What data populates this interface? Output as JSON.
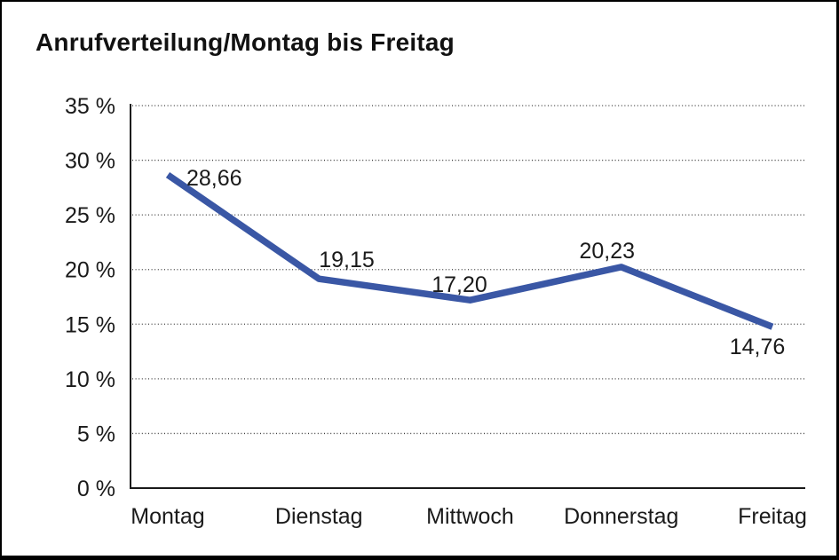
{
  "chart": {
    "title": "Anrufverteilung/Montag bis Freitag"
  },
  "chart_data": {
    "type": "line",
    "title": "Anrufverteilung/Montag bis Freitag",
    "categories": [
      "Montag",
      "Dienstag",
      "Mittwoch",
      "Donnerstag",
      "Freitag"
    ],
    "values": [
      28.66,
      19.15,
      17.2,
      20.23,
      14.76
    ],
    "value_labels": [
      "28,66",
      "19,15",
      "17,20",
      "20,23",
      "14,76"
    ],
    "unit": "%",
    "xlabel": "",
    "ylabel": "",
    "ylim": [
      0,
      35
    ],
    "ytick_step": 5,
    "ytick_labels": [
      "0 %",
      "5 %",
      "10 %",
      "15 %",
      "20 %",
      "25 %",
      "30 %",
      "35 %"
    ],
    "grid": "horizontal-dotted",
    "legend": "none",
    "colors": {
      "line": "#3A57A5",
      "axis": "#1a1a1a",
      "gridline": "#3f3f3f",
      "text": "#1a1a1a",
      "background": "#ffffff"
    }
  }
}
